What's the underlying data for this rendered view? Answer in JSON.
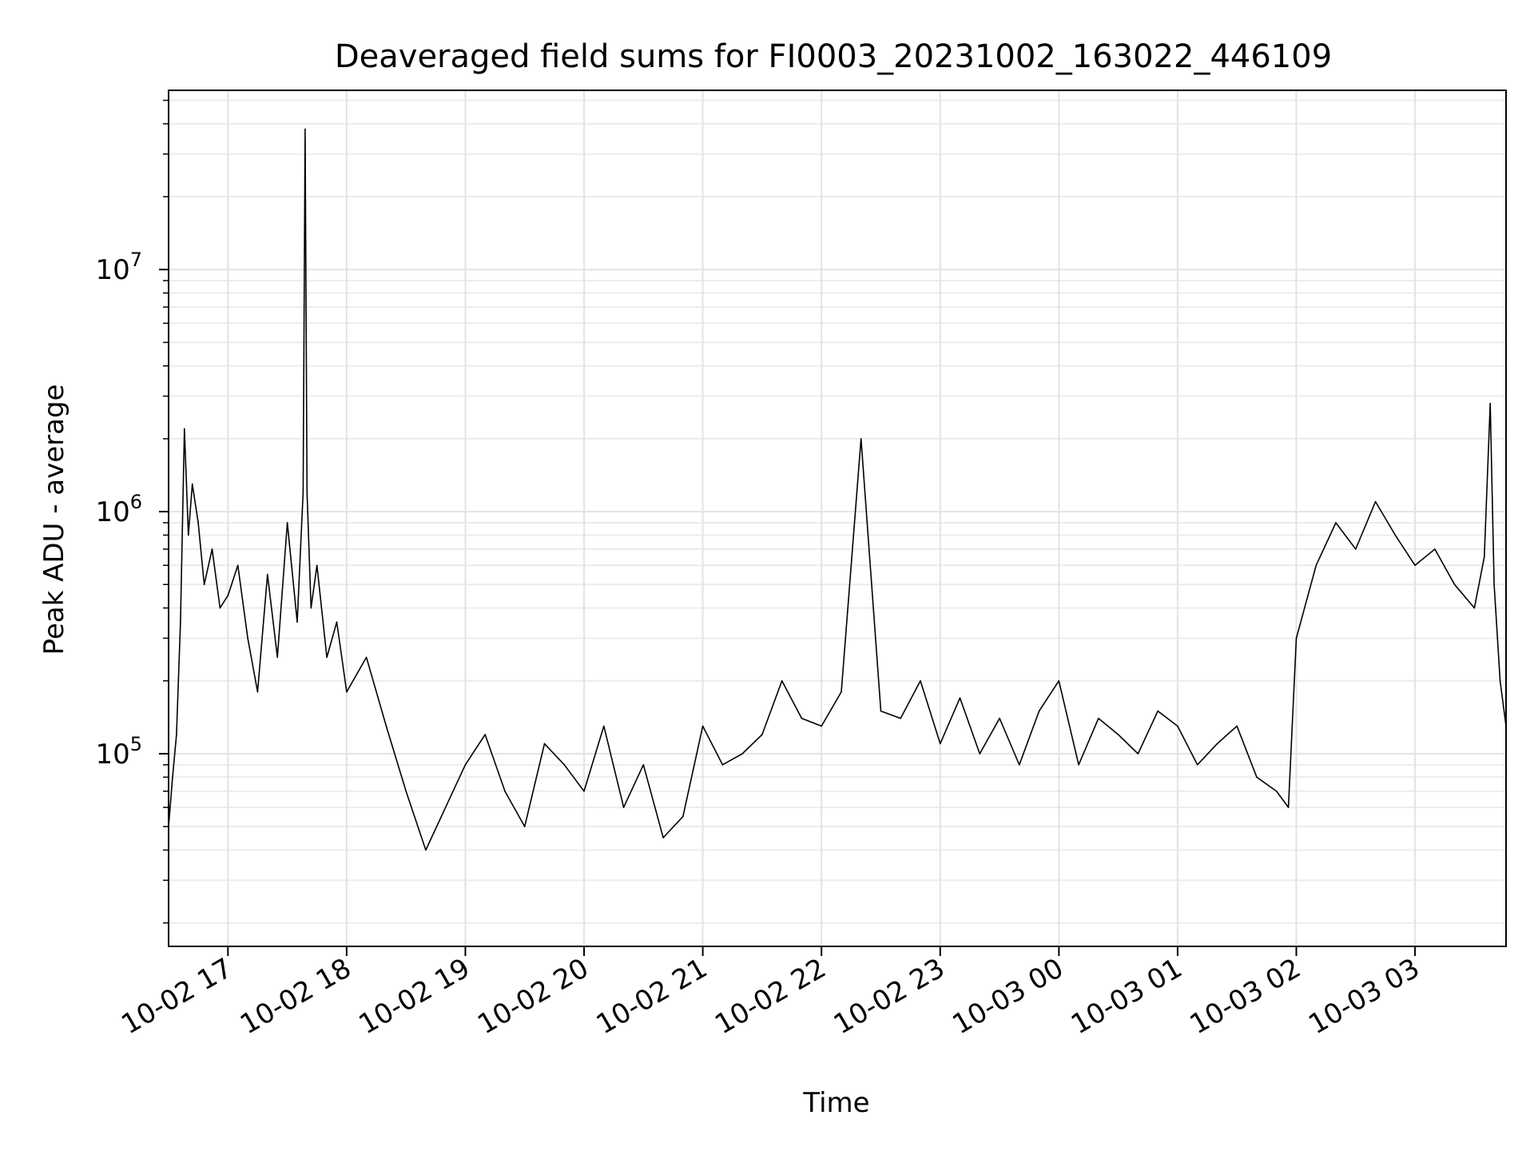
{
  "chart_data": {
    "type": "line",
    "title": "Deaveraged field sums for FI0003_20231002_163022_446109",
    "xlabel": "Time",
    "ylabel": "Peak ADU - average",
    "x_scale": "time",
    "y_scale": "log",
    "xlim": [
      "2023-10-02 16:30",
      "2023-10-03 03:46"
    ],
    "ylim": [
      16000,
      55000000
    ],
    "grid": true,
    "x_ticks": [
      {
        "label": "10-02 17",
        "t": "2023-10-02 17:00"
      },
      {
        "label": "10-02 18",
        "t": "2023-10-02 18:00"
      },
      {
        "label": "10-02 19",
        "t": "2023-10-02 19:00"
      },
      {
        "label": "10-02 20",
        "t": "2023-10-02 20:00"
      },
      {
        "label": "10-02 21",
        "t": "2023-10-02 21:00"
      },
      {
        "label": "10-02 22",
        "t": "2023-10-02 22:00"
      },
      {
        "label": "10-02 23",
        "t": "2023-10-02 23:00"
      },
      {
        "label": "10-03 00",
        "t": "2023-10-03 00:00"
      },
      {
        "label": "10-03 01",
        "t": "2023-10-03 01:00"
      },
      {
        "label": "10-03 02",
        "t": "2023-10-03 02:00"
      },
      {
        "label": "10-03 03",
        "t": "2023-10-03 03:00"
      }
    ],
    "y_ticks": [
      {
        "base": "10",
        "exp": "5",
        "value": 100000
      },
      {
        "base": "10",
        "exp": "6",
        "value": 1000000
      },
      {
        "base": "10",
        "exp": "7",
        "value": 10000000
      }
    ],
    "series": [
      {
        "color": "#000000",
        "x": [
          "2023-10-02 16:30",
          "2023-10-02 16:32",
          "2023-10-02 16:34",
          "2023-10-02 16:36",
          "2023-10-02 16:38",
          "2023-10-02 16:40",
          "2023-10-02 16:42",
          "2023-10-02 16:45",
          "2023-10-02 16:48",
          "2023-10-02 16:52",
          "2023-10-02 16:56",
          "2023-10-02 17:00",
          "2023-10-02 17:05",
          "2023-10-02 17:10",
          "2023-10-02 17:15",
          "2023-10-02 17:20",
          "2023-10-02 17:25",
          "2023-10-02 17:30",
          "2023-10-02 17:35",
          "2023-10-02 17:38",
          "2023-10-02 17:39",
          "2023-10-02 17:40",
          "2023-10-02 17:42",
          "2023-10-02 17:45",
          "2023-10-02 17:50",
          "2023-10-02 17:55",
          "2023-10-02 18:00",
          "2023-10-02 18:10",
          "2023-10-02 18:20",
          "2023-10-02 18:30",
          "2023-10-02 18:40",
          "2023-10-02 18:50",
          "2023-10-02 19:00",
          "2023-10-02 19:10",
          "2023-10-02 19:20",
          "2023-10-02 19:30",
          "2023-10-02 19:40",
          "2023-10-02 19:50",
          "2023-10-02 20:00",
          "2023-10-02 20:10",
          "2023-10-02 20:20",
          "2023-10-02 20:30",
          "2023-10-02 20:40",
          "2023-10-02 20:50",
          "2023-10-02 21:00",
          "2023-10-02 21:10",
          "2023-10-02 21:20",
          "2023-10-02 21:30",
          "2023-10-02 21:40",
          "2023-10-02 21:50",
          "2023-10-02 22:00",
          "2023-10-02 22:10",
          "2023-10-02 22:20",
          "2023-10-02 22:30",
          "2023-10-02 22:40",
          "2023-10-02 22:50",
          "2023-10-02 23:00",
          "2023-10-02 23:10",
          "2023-10-02 23:20",
          "2023-10-02 23:30",
          "2023-10-02 23:40",
          "2023-10-02 23:50",
          "2023-10-03 00:00",
          "2023-10-03 00:10",
          "2023-10-03 00:20",
          "2023-10-03 00:30",
          "2023-10-03 00:40",
          "2023-10-03 00:50",
          "2023-10-03 01:00",
          "2023-10-03 01:10",
          "2023-10-03 01:20",
          "2023-10-03 01:30",
          "2023-10-03 01:40",
          "2023-10-03 01:50",
          "2023-10-03 01:56",
          "2023-10-03 02:00",
          "2023-10-03 02:10",
          "2023-10-03 02:20",
          "2023-10-03 02:30",
          "2023-10-03 02:40",
          "2023-10-03 02:50",
          "2023-10-03 03:00",
          "2023-10-03 03:10",
          "2023-10-03 03:20",
          "2023-10-03 03:30",
          "2023-10-03 03:35",
          "2023-10-03 03:38",
          "2023-10-03 03:40",
          "2023-10-03 03:43",
          "2023-10-03 03:46"
        ],
        "values": [
          50000,
          80000,
          120000,
          350000,
          2200000,
          800000,
          1300000,
          900000,
          500000,
          700000,
          400000,
          450000,
          600000,
          300000,
          180000,
          550000,
          250000,
          900000,
          350000,
          1200000,
          38000000,
          1200000,
          400000,
          600000,
          250000,
          350000,
          180000,
          250000,
          130000,
          70000,
          40000,
          60000,
          90000,
          120000,
          70000,
          50000,
          110000,
          90000,
          70000,
          130000,
          60000,
          90000,
          45000,
          55000,
          130000,
          90000,
          100000,
          120000,
          200000,
          140000,
          130000,
          180000,
          2000000,
          150000,
          140000,
          200000,
          110000,
          170000,
          100000,
          140000,
          90000,
          150000,
          200000,
          90000,
          140000,
          120000,
          100000,
          150000,
          130000,
          90000,
          110000,
          130000,
          80000,
          70000,
          60000,
          300000,
          600000,
          900000,
          700000,
          1100000,
          800000,
          600000,
          700000,
          500000,
          400000,
          650000,
          2800000,
          500000,
          200000,
          130000
        ]
      }
    ]
  }
}
